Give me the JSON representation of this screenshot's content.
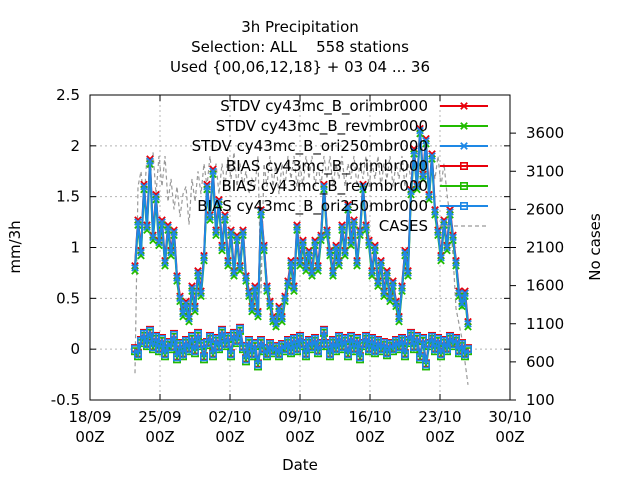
{
  "chart_data": {
    "type": "line",
    "title_lines": [
      "3h Precipitation",
      "Selection: ALL    558 stations",
      "Used {00,06,12,18} + 03 04 ... 36"
    ],
    "xlabel": "Date",
    "ylabel": "mm/3h",
    "y2label": "No cases",
    "ylim": [
      -0.5,
      2.5
    ],
    "y2lim": [
      100,
      4100
    ],
    "xlim": [
      "18/09 00Z",
      "30/10 00Z"
    ],
    "grid": true,
    "legend_position": "top-right",
    "y_ticks": [
      "-0.5",
      "0",
      "0.5",
      "1",
      "1.5",
      "2",
      "2.5"
    ],
    "y2_ticks": [
      "100",
      "600",
      "1100",
      "1600",
      "2100",
      "2600",
      "3100",
      "3600"
    ],
    "x_ticks": [
      {
        "day": 0,
        "l1": "18/09",
        "l2": "00Z"
      },
      {
        "day": 7,
        "l1": "25/09",
        "l2": "00Z"
      },
      {
        "day": 14,
        "l1": "02/10",
        "l2": "00Z"
      },
      {
        "day": 21,
        "l1": "09/10",
        "l2": "00Z"
      },
      {
        "day": 28,
        "l1": "16/10",
        "l2": "00Z"
      },
      {
        "day": 35,
        "l1": "23/10",
        "l2": "00Z"
      },
      {
        "day": 42,
        "l1": "30/10",
        "l2": "00Z"
      }
    ],
    "series": [
      {
        "name": "STDV cy43mc_B_orimbr000",
        "color": "#e8000b",
        "marker": "x",
        "kind": "stdv",
        "offset": 0.02
      },
      {
        "name": "STDV cy43mc_B_revmbr000",
        "color": "#22bb00",
        "marker": "x",
        "kind": "stdv",
        "offset": -0.03
      },
      {
        "name": "STDV cy43mc_B_ori250mbr000",
        "color": "#1e88e5",
        "marker": "x",
        "kind": "stdv",
        "offset": 0.0
      },
      {
        "name": "BIAS cy43mc_B_orimbr000",
        "color": "#e8000b",
        "marker": "square",
        "kind": "bias",
        "offset": 0.01
      },
      {
        "name": "BIAS cy43mc_B_revmbr000",
        "color": "#22bb00",
        "marker": "square",
        "kind": "bias",
        "offset": -0.02
      },
      {
        "name": "BIAS cy43mc_B_ori250mbr000",
        "color": "#1e88e5",
        "marker": "square",
        "kind": "bias",
        "offset": 0.0
      },
      {
        "name": "CASES",
        "color": "#999999",
        "marker": "none",
        "kind": "cases",
        "axis": "y2"
      }
    ],
    "stdv_profile": [
      [
        4.5,
        0.8
      ],
      [
        4.8,
        1.25
      ],
      [
        5.1,
        0.95
      ],
      [
        5.4,
        1.6
      ],
      [
        5.7,
        1.2
      ],
      [
        6.0,
        1.85
      ],
      [
        6.3,
        1.1
      ],
      [
        6.6,
        1.5
      ],
      [
        6.9,
        1.05
      ],
      [
        7.2,
        1.25
      ],
      [
        7.5,
        0.85
      ],
      [
        7.8,
        1.2
      ],
      [
        8.1,
        0.95
      ],
      [
        8.4,
        1.15
      ],
      [
        8.7,
        0.7
      ],
      [
        9.0,
        0.5
      ],
      [
        9.3,
        0.35
      ],
      [
        9.6,
        0.45
      ],
      [
        9.9,
        0.3
      ],
      [
        10.2,
        0.6
      ],
      [
        10.5,
        0.4
      ],
      [
        10.8,
        0.75
      ],
      [
        11.1,
        0.55
      ],
      [
        11.4,
        0.9
      ],
      [
        11.7,
        1.6
      ],
      [
        12.0,
        1.3
      ],
      [
        12.3,
        1.75
      ],
      [
        12.6,
        1.15
      ],
      [
        12.9,
        1.45
      ],
      [
        13.2,
        1.0
      ],
      [
        13.5,
        1.3
      ],
      [
        13.8,
        0.85
      ],
      [
        14.1,
        1.15
      ],
      [
        14.4,
        0.75
      ],
      [
        14.7,
        1.1
      ],
      [
        15.0,
        0.8
      ],
      [
        15.3,
        1.15
      ],
      [
        15.6,
        0.7
      ],
      [
        15.9,
        0.55
      ],
      [
        16.2,
        0.4
      ],
      [
        16.5,
        0.6
      ],
      [
        16.8,
        0.35
      ],
      [
        17.1,
        1.35
      ],
      [
        17.4,
        1.0
      ],
      [
        17.7,
        0.6
      ],
      [
        18.0,
        0.45
      ],
      [
        18.3,
        0.3
      ],
      [
        18.6,
        0.25
      ],
      [
        18.9,
        0.4
      ],
      [
        19.2,
        0.3
      ],
      [
        19.5,
        0.5
      ],
      [
        19.8,
        0.65
      ],
      [
        20.1,
        0.85
      ],
      [
        20.4,
        0.6
      ],
      [
        20.7,
        1.2
      ],
      [
        21.0,
        0.85
      ],
      [
        21.3,
        1.05
      ],
      [
        21.6,
        0.8
      ],
      [
        21.9,
        0.95
      ],
      [
        22.2,
        0.75
      ],
      [
        22.5,
        1.05
      ],
      [
        22.8,
        0.8
      ],
      [
        23.1,
        1.1
      ],
      [
        23.4,
        1.6
      ],
      [
        23.7,
        1.15
      ],
      [
        24.0,
        0.95
      ],
      [
        24.3,
        0.75
      ],
      [
        24.6,
        1.0
      ],
      [
        24.9,
        0.85
      ],
      [
        25.2,
        1.2
      ],
      [
        25.5,
        0.95
      ],
      [
        25.8,
        1.4
      ],
      [
        26.1,
        1.05
      ],
      [
        26.4,
        1.25
      ],
      [
        26.7,
        0.85
      ],
      [
        27.0,
        1.15
      ],
      [
        27.3,
        1.6
      ],
      [
        27.6,
        1.2
      ],
      [
        27.9,
        1.05
      ],
      [
        28.2,
        0.75
      ],
      [
        28.5,
        1.0
      ],
      [
        28.8,
        0.65
      ],
      [
        29.1,
        0.85
      ],
      [
        29.4,
        0.55
      ],
      [
        29.7,
        0.75
      ],
      [
        30.0,
        0.5
      ],
      [
        30.3,
        0.65
      ],
      [
        30.6,
        0.45
      ],
      [
        30.9,
        0.3
      ],
      [
        31.2,
        0.6
      ],
      [
        31.5,
        0.95
      ],
      [
        31.8,
        0.75
      ],
      [
        32.1,
        1.55
      ],
      [
        32.4,
        1.95
      ],
      [
        32.7,
        1.6
      ],
      [
        33.0,
        2.15
      ],
      [
        33.3,
        1.7
      ],
      [
        33.6,
        2.05
      ],
      [
        33.9,
        1.5
      ],
      [
        34.2,
        1.9
      ],
      [
        34.5,
        1.35
      ],
      [
        34.8,
        1.15
      ],
      [
        35.1,
        0.9
      ],
      [
        35.4,
        1.25
      ],
      [
        35.7,
        1.0
      ],
      [
        36.0,
        1.35
      ],
      [
        36.3,
        1.1
      ],
      [
        36.6,
        0.85
      ],
      [
        36.9,
        0.55
      ],
      [
        37.2,
        0.45
      ],
      [
        37.5,
        0.55
      ],
      [
        37.8,
        0.25
      ]
    ],
    "bias_profile": [
      [
        4.5,
        0.0
      ],
      [
        4.8,
        -0.05
      ],
      [
        5.1,
        0.08
      ],
      [
        5.4,
        0.15
      ],
      [
        5.7,
        0.05
      ],
      [
        6.0,
        0.18
      ],
      [
        6.3,
        0.02
      ],
      [
        6.6,
        0.12
      ],
      [
        6.9,
        0.0
      ],
      [
        7.2,
        0.1
      ],
      [
        7.5,
        -0.05
      ],
      [
        7.8,
        0.06
      ],
      [
        8.1,
        0.02
      ],
      [
        8.4,
        0.14
      ],
      [
        8.7,
        -0.08
      ],
      [
        9.0,
        0.05
      ],
      [
        9.3,
        -0.05
      ],
      [
        9.6,
        0.08
      ],
      [
        9.9,
        0.0
      ],
      [
        10.2,
        0.12
      ],
      [
        10.5,
        -0.02
      ],
      [
        10.8,
        0.15
      ],
      [
        11.1,
        0.05
      ],
      [
        11.4,
        -0.08
      ],
      [
        11.7,
        0.06
      ],
      [
        12.0,
        0.12
      ],
      [
        12.3,
        -0.05
      ],
      [
        12.6,
        0.1
      ],
      [
        12.9,
        0.02
      ],
      [
        13.2,
        0.18
      ],
      [
        13.5,
        0.05
      ],
      [
        13.8,
        0.12
      ],
      [
        14.1,
        -0.05
      ],
      [
        14.4,
        0.15
      ],
      [
        14.7,
        0.08
      ],
      [
        15.0,
        0.2
      ],
      [
        15.3,
        0.02
      ],
      [
        15.6,
        -0.1
      ],
      [
        15.9,
        0.08
      ],
      [
        16.2,
        -0.05
      ],
      [
        16.5,
        0.05
      ],
      [
        16.8,
        -0.15
      ],
      [
        17.1,
        0.08
      ],
      [
        17.4,
        0.0
      ],
      [
        17.7,
        -0.05
      ],
      [
        18.0,
        0.05
      ],
      [
        18.3,
        -0.02
      ],
      [
        18.6,
        0.02
      ],
      [
        18.9,
        -0.05
      ],
      [
        19.2,
        0.04
      ],
      [
        19.5,
        0.0
      ],
      [
        19.8,
        0.08
      ],
      [
        20.1,
        -0.02
      ],
      [
        20.4,
        0.1
      ],
      [
        20.7,
        0.0
      ],
      [
        21.0,
        0.12
      ],
      [
        21.3,
        0.05
      ],
      [
        21.6,
        -0.05
      ],
      [
        21.9,
        0.08
      ],
      [
        22.2,
        0.02
      ],
      [
        22.5,
        0.1
      ],
      [
        22.8,
        -0.02
      ],
      [
        23.1,
        0.05
      ],
      [
        23.4,
        0.18
      ],
      [
        23.7,
        0.05
      ],
      [
        24.0,
        -0.05
      ],
      [
        24.3,
        0.08
      ],
      [
        24.6,
        0.0
      ],
      [
        24.9,
        0.12
      ],
      [
        25.2,
        0.02
      ],
      [
        25.5,
        0.1
      ],
      [
        25.8,
        -0.05
      ],
      [
        26.1,
        0.12
      ],
      [
        26.4,
        0.0
      ],
      [
        26.7,
        0.1
      ],
      [
        27.0,
        -0.08
      ],
      [
        27.3,
        0.05
      ],
      [
        27.6,
        0.12
      ],
      [
        27.9,
        0.0
      ],
      [
        28.2,
        0.1
      ],
      [
        28.5,
        -0.02
      ],
      [
        28.8,
        0.08
      ],
      [
        29.1,
        0.0
      ],
      [
        29.4,
        0.06
      ],
      [
        29.7,
        -0.04
      ],
      [
        30.0,
        0.05
      ],
      [
        30.3,
        0.0
      ],
      [
        30.6,
        0.08
      ],
      [
        30.9,
        0.02
      ],
      [
        31.2,
        0.1
      ],
      [
        31.5,
        -0.05
      ],
      [
        31.8,
        0.08
      ],
      [
        32.1,
        0.15
      ],
      [
        32.4,
        0.02
      ],
      [
        32.7,
        0.12
      ],
      [
        33.0,
        -0.08
      ],
      [
        33.3,
        0.1
      ],
      [
        33.6,
        -0.15
      ],
      [
        33.9,
        0.05
      ],
      [
        34.2,
        0.12
      ],
      [
        34.5,
        0.0
      ],
      [
        34.8,
        0.1
      ],
      [
        35.1,
        -0.05
      ],
      [
        35.4,
        0.08
      ],
      [
        35.7,
        0.0
      ],
      [
        36.0,
        0.12
      ],
      [
        36.3,
        0.05
      ],
      [
        36.6,
        0.1
      ],
      [
        36.9,
        -0.02
      ],
      [
        37.2,
        0.05
      ],
      [
        37.5,
        -0.05
      ],
      [
        37.8,
        0.0
      ]
    ],
    "cases_profile": [
      [
        4.5,
        450
      ],
      [
        4.8,
        2900
      ],
      [
        5.1,
        3100
      ],
      [
        5.4,
        2700
      ],
      [
        5.7,
        3300
      ],
      [
        6.0,
        3000
      ],
      [
        6.3,
        3350
      ],
      [
        6.6,
        2800
      ],
      [
        6.9,
        3300
      ],
      [
        7.2,
        2900
      ],
      [
        7.5,
        3300
      ],
      [
        7.8,
        2700
      ],
      [
        8.1,
        3000
      ],
      [
        8.4,
        2600
      ],
      [
        8.7,
        2900
      ],
      [
        9.0,
        2500
      ],
      [
        9.3,
        2800
      ],
      [
        9.6,
        2900
      ],
      [
        9.9,
        2400
      ],
      [
        10.2,
        3000
      ],
      [
        10.5,
        2700
      ],
      [
        10.8,
        3100
      ],
      [
        11.1,
        2800
      ],
      [
        11.4,
        3200
      ],
      [
        11.7,
        2900
      ],
      [
        12.0,
        3300
      ],
      [
        12.3,
        2900
      ],
      [
        12.6,
        3200
      ],
      [
        12.9,
        2800
      ],
      [
        13.2,
        3200
      ],
      [
        13.5,
        2900
      ],
      [
        13.8,
        3300
      ],
      [
        14.1,
        3000
      ],
      [
        14.4,
        3350
      ],
      [
        14.7,
        2900
      ],
      [
        15.0,
        3200
      ],
      [
        15.3,
        2900
      ],
      [
        15.6,
        3100
      ],
      [
        15.9,
        2800
      ],
      [
        16.2,
        3000
      ],
      [
        16.5,
        2900
      ],
      [
        16.8,
        3300
      ],
      [
        17.1,
        1500
      ],
      [
        17.4,
        3200
      ],
      [
        17.7,
        2900
      ],
      [
        18.0,
        3300
      ],
      [
        18.3,
        2900
      ],
      [
        18.6,
        3200
      ],
      [
        18.9,
        2800
      ],
      [
        19.2,
        3200
      ],
      [
        19.5,
        2900
      ],
      [
        19.8,
        3300
      ],
      [
        20.1,
        3000
      ],
      [
        20.4,
        3300
      ],
      [
        20.7,
        2900
      ],
      [
        21.0,
        3200
      ],
      [
        21.3,
        2900
      ],
      [
        21.6,
        3300
      ],
      [
        21.9,
        3000
      ],
      [
        22.2,
        3300
      ],
      [
        22.5,
        2900
      ],
      [
        22.8,
        3200
      ],
      [
        23.1,
        2900
      ],
      [
        23.4,
        3300
      ],
      [
        23.7,
        3000
      ],
      [
        24.0,
        3300
      ],
      [
        24.3,
        2900
      ],
      [
        24.6,
        3200
      ],
      [
        24.9,
        3000
      ],
      [
        25.2,
        3300
      ],
      [
        25.5,
        2900
      ],
      [
        25.8,
        3200
      ],
      [
        26.1,
        3000
      ],
      [
        26.4,
        3300
      ],
      [
        26.7,
        2900
      ],
      [
        27.0,
        3200
      ],
      [
        27.3,
        3000
      ],
      [
        27.6,
        3300
      ],
      [
        27.9,
        2900
      ],
      [
        28.2,
        3200
      ],
      [
        28.5,
        3000
      ],
      [
        28.8,
        3300
      ],
      [
        29.1,
        2900
      ],
      [
        29.4,
        3200
      ],
      [
        29.7,
        3000
      ],
      [
        30.0,
        3300
      ],
      [
        30.3,
        2900
      ],
      [
        30.6,
        3200
      ],
      [
        30.9,
        3000
      ],
      [
        31.2,
        3300
      ],
      [
        31.5,
        2900
      ],
      [
        31.8,
        3200
      ],
      [
        32.1,
        3000
      ],
      [
        32.4,
        3300
      ],
      [
        32.7,
        2900
      ],
      [
        33.0,
        3200
      ],
      [
        33.3,
        3000
      ],
      [
        33.6,
        3300
      ],
      [
        33.9,
        2900
      ],
      [
        34.2,
        3200
      ],
      [
        34.5,
        3000
      ],
      [
        34.8,
        3300
      ],
      [
        35.1,
        2900
      ],
      [
        35.4,
        3200
      ],
      [
        35.7,
        2800
      ],
      [
        36.0,
        2500
      ],
      [
        36.3,
        2000
      ],
      [
        36.6,
        1300
      ],
      [
        36.9,
        1100
      ],
      [
        37.2,
        900
      ],
      [
        37.5,
        600
      ],
      [
        37.8,
        300
      ]
    ]
  }
}
